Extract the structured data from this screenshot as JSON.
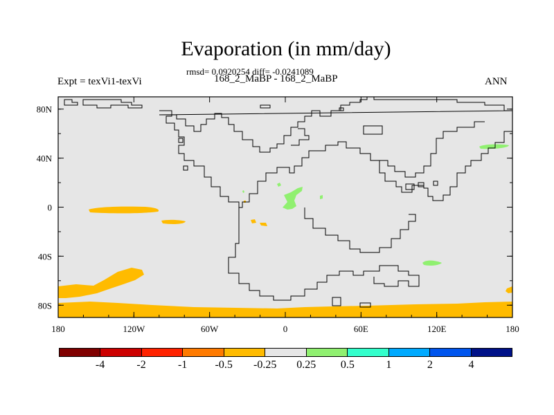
{
  "chart_data": {
    "type": "heatmap",
    "title": "Evaporation (in mm/day)",
    "stats_text": "rmsd= 0.0920254 diff= -0.0241089",
    "subtitle": "168_2_MaBP - 168_2_MaBP",
    "left_label": "Expt = texVi1-texVi",
    "right_label": "ANN",
    "x_ticks": [
      "180",
      "120W",
      "60W",
      "0",
      "60E",
      "120E",
      "180"
    ],
    "y_ticks": [
      "80N",
      "40N",
      "0",
      "40S",
      "80S"
    ],
    "xlim": [
      -180,
      180
    ],
    "ylim": [
      -90,
      90
    ],
    "colorbar": {
      "colors": [
        "#7f0000",
        "#cc0000",
        "#ff2200",
        "#ff7a00",
        "#ffbb00",
        "#e6e6e6",
        "#90f070",
        "#33ffcc",
        "#00aaff",
        "#0055ee",
        "#001188"
      ],
      "labels": [
        "-4",
        "-2",
        "-1",
        "-0.5",
        "-0.25",
        "0.25",
        "0.5",
        "1",
        "2",
        "4"
      ]
    },
    "anomaly_regions": [
      {
        "sign": "negative",
        "level": "-0.25 to -0.5",
        "region": "southern ocean band"
      },
      {
        "sign": "negative",
        "level": "-0.25 to -0.5",
        "region": "south pacific"
      },
      {
        "sign": "negative",
        "level": "-0.25 to -0.5",
        "region": "equatorial pacific"
      },
      {
        "sign": "positive",
        "level": "0.25 to 0.5",
        "region": "central continent"
      },
      {
        "sign": "positive",
        "level": "0.25 to 0.5",
        "region": "east asia"
      },
      {
        "sign": "positive",
        "level": "0.25 to 0.5",
        "region": "southern indian ocean"
      }
    ]
  }
}
